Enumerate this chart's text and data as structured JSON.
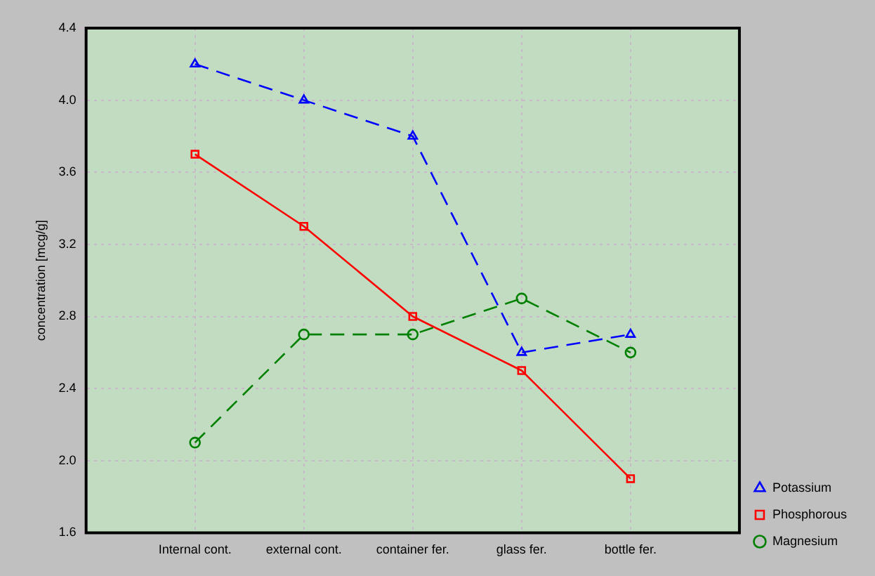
{
  "chart_data": {
    "type": "line",
    "ylabel": "concentration [mcg/g]",
    "categories": [
      "Internal cont.",
      "external cont.",
      "container fer.",
      "glass fer.",
      "bottle fer."
    ],
    "series": [
      {
        "name": "Potassium",
        "color": "#0000ff",
        "values": [
          4.2,
          4.0,
          3.8,
          2.6,
          2.7
        ],
        "marker": "triangle",
        "line_style": "dashed"
      },
      {
        "name": "Phosphorous",
        "color": "#ff0000",
        "values": [
          3.7,
          3.3,
          2.8,
          2.5,
          1.9
        ],
        "marker": "square",
        "line_style": "solid"
      },
      {
        "name": "Magnesium",
        "color": "#008000",
        "values": [
          2.1,
          2.7,
          2.7,
          2.9,
          2.6
        ],
        "marker": "circle",
        "line_style": "dashed"
      }
    ],
    "ylim": [
      1.6,
      4.4
    ],
    "yticks": [
      1.6,
      {
        "value": 2,
        "label": "2.0"
      },
      2.4,
      2.8,
      3.2,
      3.6,
      {
        "value": 4,
        "label": "4.0"
      },
      4.4
    ],
    "grid": true,
    "legend": "bottom right"
  }
}
